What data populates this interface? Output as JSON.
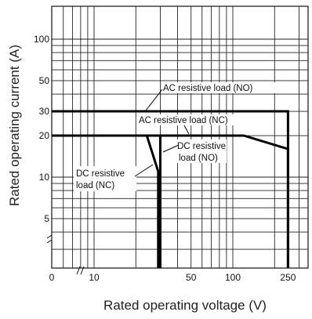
{
  "chart_data": {
    "type": "line",
    "title": "",
    "xlabel": "Rated operating voltage (V)",
    "ylabel": "Rated operating current (A)",
    "x_scale": "log",
    "y_scale": "log",
    "xlim": [
      0,
      300
    ],
    "ylim": [
      1.5,
      200
    ],
    "x_ticks": [
      "0",
      "10",
      "50",
      "100",
      "250"
    ],
    "y_ticks": [
      "100",
      "50",
      "30",
      "20",
      "10",
      "5"
    ],
    "grid": true,
    "series": [
      {
        "name": "AC resistive load (NO)",
        "x": [
          4,
          250,
          250
        ],
        "y": [
          30,
          30,
          1.5
        ]
      },
      {
        "name": "AC resistive load (NC)",
        "x": [
          4,
          120,
          250,
          250
        ],
        "y": [
          20,
          20,
          16,
          1.5
        ]
      },
      {
        "name": "DC resistive load (NO)",
        "x": [
          4,
          30,
          30
        ],
        "y": [
          20,
          20,
          1.5
        ]
      },
      {
        "name": "DC resistive load (NC)",
        "x": [
          4,
          24,
          29,
          29
        ],
        "y": [
          20,
          20,
          11,
          1.5
        ]
      }
    ],
    "annotations": [
      {
        "text": "AC resistive load (NO)"
      },
      {
        "text": "AC resistive load (NC)"
      },
      {
        "lines": [
          "DC resistive",
          "load (NO)"
        ]
      },
      {
        "lines": [
          "DC resistive",
          "load (NC)"
        ]
      }
    ]
  }
}
